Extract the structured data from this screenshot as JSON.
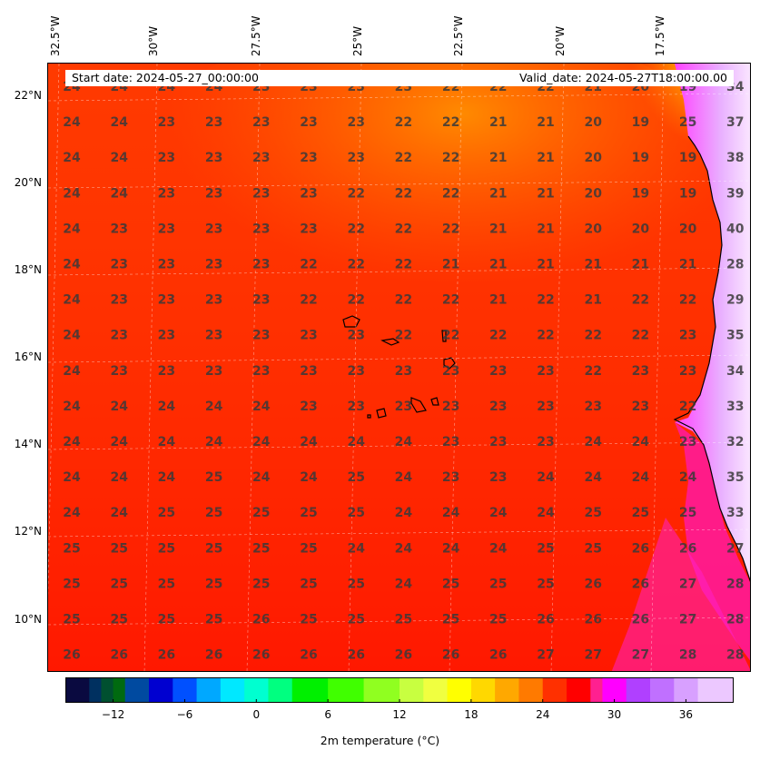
{
  "header": {
    "start_date": "Start date: 2024-05-27_00:00:00",
    "valid_date": "Valid_date: 2024-05-27T18:00:00.00"
  },
  "axes": {
    "lon_labels": [
      "32.5°W",
      "30°W",
      "27.5°W",
      "25°W",
      "22.5°W",
      "20°W",
      "17.5°W"
    ],
    "lat_labels": [
      "22°N",
      "20°N",
      "18°N",
      "16°N",
      "14°N",
      "12°N",
      "10°N"
    ]
  },
  "colorbar": {
    "label": "2m temperature ($^\\circ$C)",
    "ticks": [
      "−12",
      "−6",
      "0",
      "6",
      "12",
      "18",
      "24",
      "30",
      "36"
    ],
    "range": [
      -16,
      40
    ]
  },
  "grid_values": [
    [
      "24",
      "24",
      "24",
      "24",
      "23",
      "23",
      "23",
      "23",
      "22",
      "22",
      "22",
      "21",
      "20",
      "19",
      "34"
    ],
    [
      "24",
      "24",
      "23",
      "23",
      "23",
      "23",
      "23",
      "22",
      "22",
      "21",
      "21",
      "20",
      "19",
      "25",
      "37"
    ],
    [
      "24",
      "24",
      "23",
      "23",
      "23",
      "23",
      "23",
      "22",
      "22",
      "21",
      "21",
      "20",
      "19",
      "19",
      "38"
    ],
    [
      "24",
      "24",
      "23",
      "23",
      "23",
      "23",
      "22",
      "22",
      "22",
      "21",
      "21",
      "20",
      "19",
      "19",
      "39"
    ],
    [
      "24",
      "23",
      "23",
      "23",
      "23",
      "23",
      "22",
      "22",
      "22",
      "21",
      "21",
      "20",
      "20",
      "20",
      "40"
    ],
    [
      "24",
      "23",
      "23",
      "23",
      "23",
      "22",
      "22",
      "22",
      "21",
      "21",
      "21",
      "21",
      "21",
      "21",
      "28"
    ],
    [
      "24",
      "23",
      "23",
      "23",
      "23",
      "22",
      "22",
      "22",
      "22",
      "21",
      "22",
      "21",
      "22",
      "22",
      "29"
    ],
    [
      "24",
      "23",
      "23",
      "23",
      "23",
      "23",
      "23",
      "22",
      "22",
      "22",
      "22",
      "22",
      "22",
      "23",
      "35"
    ],
    [
      "24",
      "23",
      "23",
      "23",
      "23",
      "23",
      "23",
      "23",
      "23",
      "23",
      "23",
      "22",
      "23",
      "23",
      "34"
    ],
    [
      "24",
      "24",
      "24",
      "24",
      "24",
      "23",
      "23",
      "23",
      "23",
      "23",
      "23",
      "23",
      "23",
      "22",
      "33"
    ],
    [
      "24",
      "24",
      "24",
      "24",
      "24",
      "24",
      "24",
      "24",
      "23",
      "23",
      "23",
      "24",
      "24",
      "23",
      "32"
    ],
    [
      "24",
      "24",
      "24",
      "25",
      "24",
      "24",
      "25",
      "24",
      "23",
      "23",
      "24",
      "24",
      "24",
      "24",
      "35"
    ],
    [
      "24",
      "24",
      "25",
      "25",
      "25",
      "25",
      "25",
      "24",
      "24",
      "24",
      "24",
      "25",
      "25",
      "25",
      "33"
    ],
    [
      "25",
      "25",
      "25",
      "25",
      "25",
      "25",
      "24",
      "24",
      "24",
      "24",
      "25",
      "25",
      "26",
      "26",
      "27"
    ],
    [
      "25",
      "25",
      "25",
      "25",
      "25",
      "25",
      "25",
      "24",
      "25",
      "25",
      "25",
      "26",
      "26",
      "27",
      "28"
    ],
    [
      "25",
      "25",
      "25",
      "25",
      "26",
      "25",
      "25",
      "25",
      "25",
      "25",
      "26",
      "26",
      "26",
      "27",
      "28"
    ],
    [
      "26",
      "26",
      "26",
      "26",
      "26",
      "26",
      "26",
      "26",
      "26",
      "26",
      "27",
      "27",
      "27",
      "28",
      "28"
    ]
  ]
}
